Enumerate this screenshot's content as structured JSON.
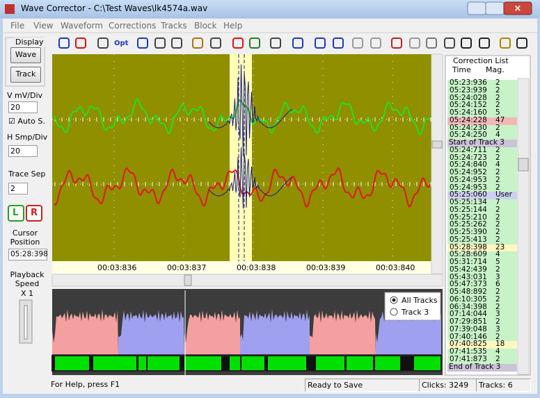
{
  "window": {
    "title": "Wave Corrector - C:\\Test Waves\\lk4574a.wav"
  },
  "menu": [
    "File",
    "View",
    "Waveform",
    "Corrections",
    "Tracks",
    "Block",
    "Help"
  ],
  "toolbar": {
    "opt_button": "Opt"
  },
  "left_panel": {
    "display_label": "Display",
    "wave_button": "Wave",
    "track_button": "Track",
    "v_label": "V mV/Div",
    "v_value": "20",
    "auto_scale": "Auto S.",
    "h_label": "H Smp/Div",
    "h_value": "20",
    "trace_sep_label": "Trace Sep",
    "trace_sep_value": "2",
    "left_channel": "L",
    "right_channel": "R",
    "cursor_label": "Cursor Position",
    "cursor_value": "05:28:398",
    "speed_label": "Playback Speed",
    "speed_value": "X 1"
  },
  "waveform": {
    "time_labels": [
      "00:03:836",
      "00:03:837",
      "00:03:838",
      "00:03:839",
      "00:03:840"
    ]
  },
  "overview": {
    "options": [
      "All Tracks",
      "Track 3"
    ]
  },
  "correction_list": {
    "title": "Correction List",
    "columns": [
      "Time",
      "Mag."
    ],
    "rows": [
      {
        "time": "05:23:936",
        "mag": 2
      },
      {
        "time": "05:23:939",
        "mag": 2
      },
      {
        "time": "05:24:028",
        "mag": 2
      },
      {
        "time": "05:24:152",
        "mag": 2
      },
      {
        "time": "05:24:160",
        "mag": 5
      },
      {
        "time": "05:24:228",
        "mag": 47,
        "color": "#f2b8b8"
      },
      {
        "time": "05:24:230",
        "mag": 2
      },
      {
        "time": "05:24:250",
        "mag": 4
      },
      {
        "text": "Start of Track 3",
        "color": "#cbc3d9"
      },
      {
        "time": "05:24:711",
        "mag": 2
      },
      {
        "time": "05:24:723",
        "mag": 2
      },
      {
        "time": "05:24:840",
        "mag": 4
      },
      {
        "time": "05:24:952",
        "mag": 2
      },
      {
        "time": "05:24:953",
        "mag": 2
      },
      {
        "time": "05:24:953",
        "mag": 2
      },
      {
        "time": "05:25:060",
        "mag": "User",
        "color": "#cdd0f2"
      },
      {
        "time": "05:25:134",
        "mag": 7
      },
      {
        "time": "05:25:144",
        "mag": 2
      },
      {
        "time": "05:25:210",
        "mag": 2
      },
      {
        "time": "05:25:262",
        "mag": 2
      },
      {
        "time": "05:25:390",
        "mag": 2
      },
      {
        "time": "05:25:413",
        "mag": 2
      },
      {
        "time": "05:28:398",
        "mag": 23,
        "color": "#fff6c0"
      },
      {
        "time": "05:28:609",
        "mag": 4
      },
      {
        "time": "05:31:714",
        "mag": 5
      },
      {
        "time": "05:42:439",
        "mag": 2
      },
      {
        "time": "05:43:031",
        "mag": 3
      },
      {
        "time": "05:47:373",
        "mag": 6
      },
      {
        "time": "05:48:892",
        "mag": 2
      },
      {
        "time": "06:10:305",
        "mag": 2
      },
      {
        "time": "06:34:398",
        "mag": 2
      },
      {
        "time": "07:14:044",
        "mag": 3
      },
      {
        "time": "07:29:851",
        "mag": 2
      },
      {
        "time": "07:39:048",
        "mag": 3
      },
      {
        "time": "07:40:146",
        "mag": 2
      },
      {
        "time": "07:40:825",
        "mag": 18,
        "color": "#fff6c0"
      },
      {
        "time": "07:41:535",
        "mag": 4
      },
      {
        "time": "07:41:873",
        "mag": 2
      },
      {
        "text": "End of Track 3",
        "color": "#cbc3d9"
      }
    ]
  },
  "status_bar": {
    "help": "For Help, press F1",
    "state": "Ready to Save",
    "clicks": "Clicks: 3249",
    "tracks": "Tracks: 6"
  }
}
